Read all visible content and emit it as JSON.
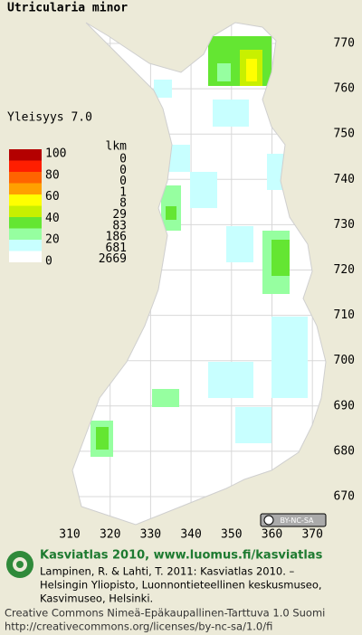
{
  "title": "Utricularia minor",
  "frequency": "Yleisyys 7.0",
  "legend": {
    "count_header": "lkm",
    "labels": [
      100,
      80,
      60,
      40,
      20,
      0
    ],
    "classes": [
      {
        "color": "#b40000",
        "count": 0
      },
      {
        "color": "#ff1e00",
        "count": 0
      },
      {
        "color": "#ff6400",
        "count": 0
      },
      {
        "color": "#ffa000",
        "count": 1
      },
      {
        "color": "#ffff00",
        "count": 8
      },
      {
        "color": "#c8f000",
        "count": 29
      },
      {
        "color": "#64e632",
        "count": 83
      },
      {
        "color": "#96ffa0",
        "count": 186
      },
      {
        "color": "#c8ffff",
        "count": 681
      },
      {
        "color": "#ffffff",
        "count": 2669
      }
    ]
  },
  "map": {
    "northing": [
      770,
      760,
      750,
      740,
      730,
      720,
      710,
      700,
      690,
      680,
      670
    ],
    "easting": [
      310,
      320,
      330,
      340,
      350,
      360,
      370
    ],
    "license_badge": "BY-NC-SA"
  },
  "footer": {
    "heading": "Kasviatlas 2010, www.luomus.fi/kasviatlas",
    "citation": [
      "Lampinen, R. & Lahti, T. 2011: Kasviatlas 2010. –",
      "Helsingin Yliopisto, Luonnontieteellinen keskusmuseo,",
      "Kasvimuseo, Helsinki."
    ],
    "license": [
      "Creative Commons Nimeä-Epäkaupallinen-Tarttuva 1.0 Suomi",
      "http://creativecommons.org/licenses/by-nc-sa/1.0/fi"
    ]
  }
}
